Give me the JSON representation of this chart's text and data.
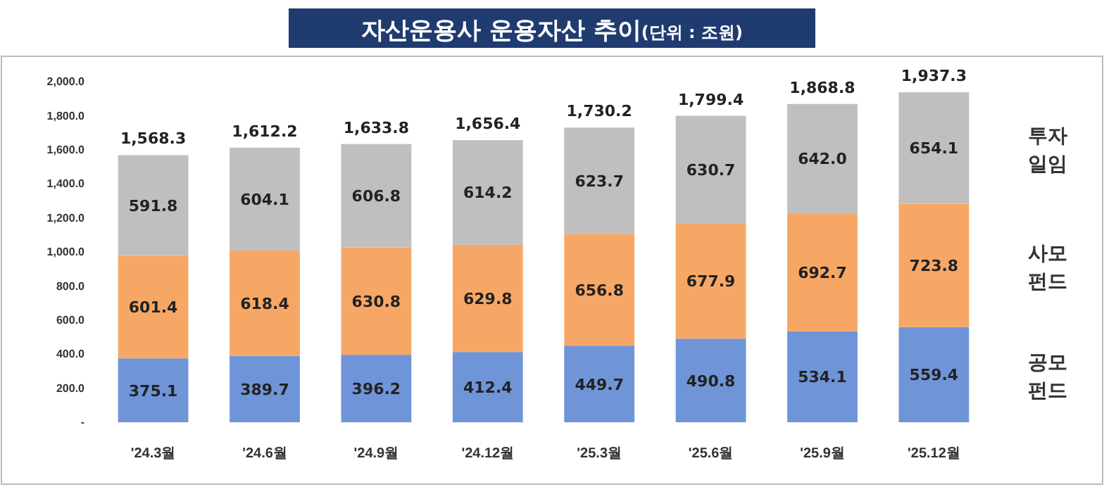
{
  "chart_data": {
    "type": "bar",
    "stacked": true,
    "title": "자산운용사 운용자산 추이",
    "subtitle": "(단위 : 조원)",
    "categories": [
      "'24.3월",
      "'24.6월",
      "'24.9월",
      "'24.12월",
      "'25.3월",
      "'25.6월",
      "'25.9월",
      "'25.12월"
    ],
    "series": [
      {
        "name": "공모펀드",
        "color": "#6f95d8",
        "values": [
          375.1,
          389.7,
          396.2,
          412.4,
          449.7,
          490.8,
          534.1,
          559.4
        ]
      },
      {
        "name": "사모펀드",
        "color": "#f7a765",
        "values": [
          601.4,
          618.4,
          630.8,
          629.8,
          656.8,
          677.9,
          692.7,
          723.8
        ]
      },
      {
        "name": "투자일임",
        "color": "#bfbfbf",
        "values": [
          591.8,
          604.1,
          606.8,
          614.2,
          623.7,
          630.7,
          642,
          654.1
        ],
        "value_labels": [
          "591.8",
          "604.1",
          "606.8",
          "614.2",
          "623.7",
          "630.7",
          "642.0",
          "654.1"
        ]
      }
    ],
    "ylim": [
      0,
      2000
    ],
    "yticks": [
      {
        "value": 0,
        "label": "-"
      },
      {
        "value": 200,
        "label": "200.0"
      },
      {
        "value": 400,
        "label": "400.0"
      },
      {
        "value": 600,
        "label": "600.0"
      },
      {
        "value": 800,
        "label": "800.0"
      },
      {
        "value": 1000,
        "label": "1,000.0"
      },
      {
        "value": 1200,
        "label": "1,200.0"
      },
      {
        "value": 1400,
        "label": "1,400.0"
      },
      {
        "value": 1600,
        "label": "1,600.0"
      },
      {
        "value": 1800,
        "label": "1,800.0"
      },
      {
        "value": 2000,
        "label": "2,000.0"
      }
    ],
    "data_labels": true,
    "totals": [
      "1,568.3",
      "1,612.2",
      "1,633.8",
      "1,656.4",
      "1,730.2",
      "1,799.4",
      "1,868.8",
      "1,937.3"
    ],
    "legend": "right",
    "grid": false
  }
}
